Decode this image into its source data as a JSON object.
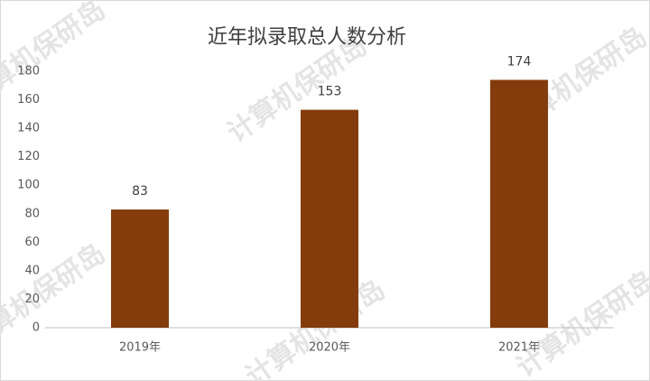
{
  "chart_data": {
    "type": "bar",
    "title": "近年拟录取总人数分析",
    "categories": [
      "2019年",
      "2020年",
      "2021年"
    ],
    "values": [
      83,
      153,
      174
    ],
    "color": "#843c0c",
    "ylim": [
      0,
      180
    ],
    "yticks": [
      0,
      20,
      40,
      60,
      80,
      100,
      120,
      140,
      160,
      180
    ],
    "grid": false,
    "watermark": "计算机保研岛"
  }
}
